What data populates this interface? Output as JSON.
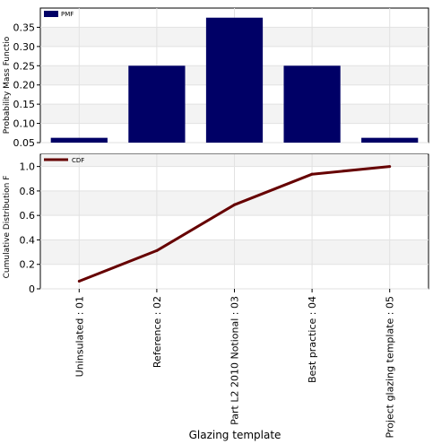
{
  "chart_data": [
    {
      "type": "bar",
      "categories": [
        "Uninsulated : 01",
        "Reference : 02",
        "Part L2 2010 Notional : 03",
        "Best practice : 04",
        "Project glazing template : 05"
      ],
      "series": [
        {
          "name": "PMF",
          "values": [
            0.0625,
            0.25,
            0.375,
            0.25,
            0.0625
          ]
        }
      ],
      "ylabel": "Probability Mass Functio",
      "ylim": [
        0.05,
        0.4
      ],
      "yticks": [
        0.05,
        0.1,
        0.15,
        0.2,
        0.25,
        0.3,
        0.35
      ],
      "grid": true,
      "legend": "top-left",
      "colors": [
        "#000066"
      ]
    },
    {
      "type": "line",
      "categories": [
        "Uninsulated : 01",
        "Reference : 02",
        "Part L2 2010 Notional : 03",
        "Best practice : 04",
        "Project glazing template : 05"
      ],
      "series": [
        {
          "name": "CDF",
          "values": [
            0.0625,
            0.3125,
            0.6875,
            0.9375,
            1.0
          ]
        }
      ],
      "ylabel": "Cumulative Distribution F",
      "xlabel": "Glazing template",
      "ylim": [
        0,
        1.1
      ],
      "yticks": [
        0,
        0.2,
        0.4,
        0.6,
        0.8,
        1.0
      ],
      "ytick_labels": [
        "0",
        "0.2",
        "0.4",
        "0.6",
        "0.8",
        "1.0"
      ],
      "grid": true,
      "legend": "top-left",
      "colors": [
        "#660000"
      ]
    }
  ]
}
